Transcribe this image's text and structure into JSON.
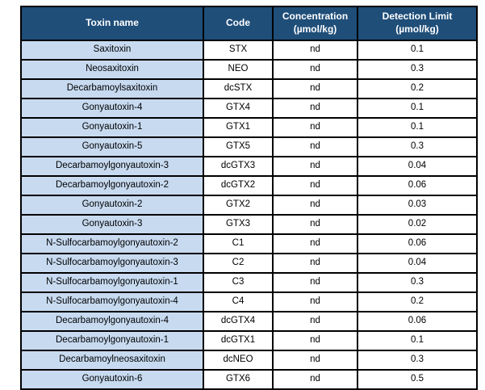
{
  "table": {
    "columns": [
      {
        "label": "Toxin name"
      },
      {
        "label": "Code"
      },
      {
        "label": "Concentration\n(µmol/kg)"
      },
      {
        "label": "Detection Limit\n(µmol/kg)"
      }
    ],
    "rows": [
      {
        "name": "Saxitoxin",
        "code": "STX",
        "concentration": "nd",
        "detection_limit": "0.1"
      },
      {
        "name": "Neosaxitoxin",
        "code": "NEO",
        "concentration": "nd",
        "detection_limit": "0.3"
      },
      {
        "name": "Decarbamoylsaxitoxin",
        "code": "dcSTX",
        "concentration": "nd",
        "detection_limit": "0.2"
      },
      {
        "name": "Gonyautoxin-4",
        "code": "GTX4",
        "concentration": "nd",
        "detection_limit": "0.1"
      },
      {
        "name": "Gonyautoxin-1",
        "code": "GTX1",
        "concentration": "nd",
        "detection_limit": "0.1"
      },
      {
        "name": "Gonyautoxin-5",
        "code": "GTX5",
        "concentration": "nd",
        "detection_limit": "0.3"
      },
      {
        "name": "Decarbamoylgonyautoxin-3",
        "code": "dcGTX3",
        "concentration": "nd",
        "detection_limit": "0.04"
      },
      {
        "name": "Decarbamoylgonyautoxin-2",
        "code": "dcGTX2",
        "concentration": "nd",
        "detection_limit": "0.06"
      },
      {
        "name": "Gonyautoxin-2",
        "code": "GTX2",
        "concentration": "nd",
        "detection_limit": "0.03"
      },
      {
        "name": "Gonyautoxin-3",
        "code": "GTX3",
        "concentration": "nd",
        "detection_limit": "0.02"
      },
      {
        "name": "N-Sulfocarbamoylgonyautoxin-2",
        "code": "C1",
        "concentration": "nd",
        "detection_limit": "0.06"
      },
      {
        "name": "N-Sulfocarbamoylgonyautoxin-3",
        "code": "C2",
        "concentration": "nd",
        "detection_limit": "0.04"
      },
      {
        "name": "N-Sulfocarbamoylgonyautoxin-1",
        "code": "C3",
        "concentration": "nd",
        "detection_limit": "0.3"
      },
      {
        "name": "N-Sulfocarbamoylgonyautoxin-4",
        "code": "C4",
        "concentration": "nd",
        "detection_limit": "0.2"
      },
      {
        "name": "Decarbamoylgonyautoxin-4",
        "code": "dcGTX4",
        "concentration": "nd",
        "detection_limit": "0.06"
      },
      {
        "name": "Decarbamoylgonyautoxin-1",
        "code": "dcGTX1",
        "concentration": "nd",
        "detection_limit": "0.1"
      },
      {
        "name": "Decarbamoylneosaxitoxin",
        "code": "dcNEO",
        "concentration": "nd",
        "detection_limit": "0.3"
      },
      {
        "name": "Gonyautoxin-6",
        "code": "GTX6",
        "concentration": "nd",
        "detection_limit": "0.5"
      }
    ],
    "colors": {
      "header_bg": "#1f4e79",
      "header_text": "#ffffff",
      "name_col_bg": "#c7daf0",
      "border": "#000000"
    }
  }
}
